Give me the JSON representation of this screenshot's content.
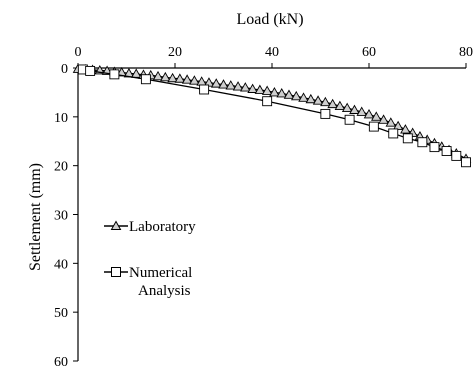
{
  "chart_data": {
    "type": "line",
    "xlabel": "Load (kN)",
    "ylabel": "Settlement (mm)",
    "x_axis_position": "top",
    "y_axis_inverted": true,
    "xlim": [
      0,
      80
    ],
    "ylim": [
      0,
      60
    ],
    "xticks": [
      0,
      20,
      40,
      60,
      80
    ],
    "yticks": [
      0,
      10,
      20,
      30,
      40,
      50,
      60
    ],
    "grid": false,
    "legend_position": "left-middle",
    "series": [
      {
        "name": "Laboratory",
        "marker": "triangle",
        "color": "#000000",
        "x": [
          0,
          1.5,
          3,
          4.5,
          6,
          7.5,
          9,
          10.5,
          12,
          13.5,
          15,
          16.5,
          18,
          19.5,
          21,
          22.5,
          24,
          25.5,
          27,
          28.5,
          30,
          31.5,
          33,
          34.5,
          36,
          37.5,
          39,
          40.5,
          42,
          43.5,
          45,
          46.5,
          48,
          49.5,
          51,
          52.5,
          54,
          55.5,
          57,
          58.5,
          60,
          61.5,
          63,
          64.5,
          66,
          67.5,
          69,
          70.5,
          72,
          73.5,
          75,
          76.5,
          78,
          80
        ],
        "y": [
          0.2,
          0.3,
          0.4,
          0.5,
          0.6,
          0.8,
          0.9,
          1.1,
          1.2,
          1.4,
          1.5,
          1.7,
          1.9,
          2.1,
          2.2,
          2.4,
          2.6,
          2.8,
          3.0,
          3.2,
          3.4,
          3.6,
          3.8,
          4.0,
          4.3,
          4.5,
          4.7,
          5.0,
          5.2,
          5.5,
          5.8,
          6.1,
          6.4,
          6.7,
          7.0,
          7.4,
          7.8,
          8.2,
          8.6,
          9.0,
          9.5,
          10.0,
          10.6,
          11.2,
          11.9,
          12.6,
          13.3,
          14.0,
          14.7,
          15.4,
          16.1,
          16.8,
          17.5,
          18.6
        ]
      },
      {
        "name": "Numerical Analysis",
        "marker": "square",
        "color": "#000000",
        "x": [
          1,
          2.5,
          7.5,
          14,
          26,
          39,
          51,
          56,
          61,
          65,
          68,
          71,
          73.5,
          76,
          78,
          80
        ],
        "y": [
          0.3,
          0.6,
          1.3,
          2.3,
          4.4,
          6.8,
          9.4,
          10.6,
          12.0,
          13.4,
          14.4,
          15.2,
          16.2,
          17.0,
          18.0,
          19.3
        ]
      }
    ]
  }
}
